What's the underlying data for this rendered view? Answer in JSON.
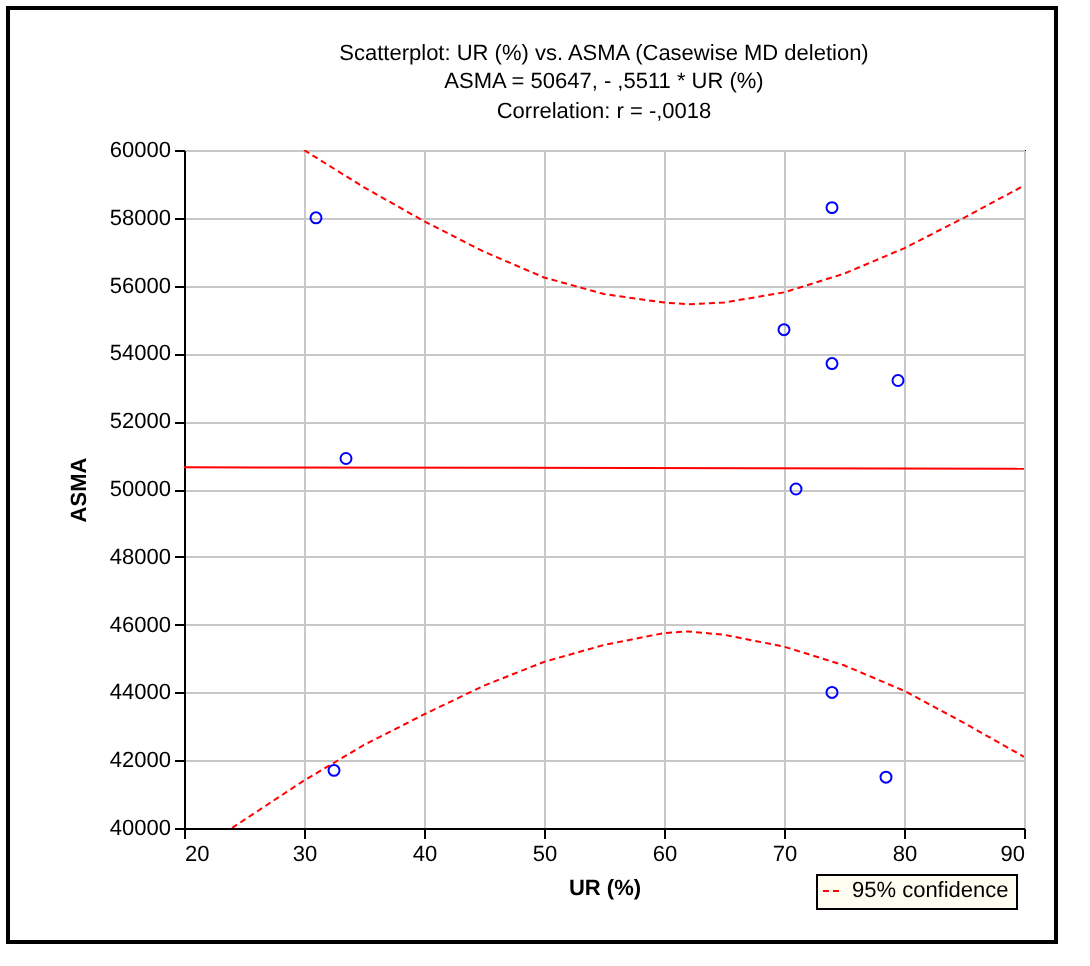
{
  "chart_data": {
    "type": "scatter",
    "title": "Scatterplot: UR (%) vs. ASMA (Casewise MD deletion)",
    "subtitle": "ASMA = 50647, - ,5511  * UR (%)",
    "annotations": [
      "Correlation: r = -,0018"
    ],
    "xlabel": "UR (%)",
    "ylabel": "ASMA",
    "xlim": [
      20,
      90
    ],
    "xticks": [
      20,
      30,
      40,
      50,
      60,
      70,
      80,
      90
    ],
    "ylim": [
      40000,
      60000
    ],
    "yticks": [
      40000,
      42000,
      44000,
      46000,
      48000,
      50000,
      52000,
      54000,
      56000,
      58000,
      60000
    ],
    "grid": true,
    "legend": "bottom right",
    "series": [
      {
        "color": "#0000ff",
        "marker": "circle",
        "x": [
          31,
          33.5,
          32.5,
          74,
          70,
          74,
          79.5,
          71,
          74,
          78.5
        ],
        "values": [
          58000,
          50900,
          41700,
          58300,
          54700,
          53700,
          53200,
          50000,
          44000,
          41500
        ]
      },
      {
        "type": "line",
        "color": "#ff0000",
        "line_style": "solid",
        "x": [
          20,
          90
        ],
        "values": [
          50640,
          50600
        ]
      },
      {
        "type": "line",
        "name": "95% confidence",
        "color": "#ff0000",
        "line_style": "dashed",
        "x": [
          30,
          35,
          40,
          45,
          50,
          55,
          60,
          62,
          65,
          70,
          75,
          80,
          85,
          90
        ],
        "values": [
          60000,
          58900,
          57900,
          57000,
          56240,
          55750,
          55500,
          55450,
          55500,
          55800,
          56350,
          57100,
          58000,
          58950
        ]
      },
      {
        "type": "line",
        "color": "#ff0000",
        "line_style": "dashed",
        "x": [
          24,
          30,
          35,
          40,
          45,
          50,
          55,
          60,
          62,
          65,
          70,
          75,
          80,
          85,
          90
        ],
        "values": [
          40000,
          41400,
          42450,
          43350,
          44200,
          44900,
          45400,
          45750,
          45800,
          45700,
          45350,
          44800,
          44050,
          43100,
          42100
        ]
      }
    ]
  }
}
